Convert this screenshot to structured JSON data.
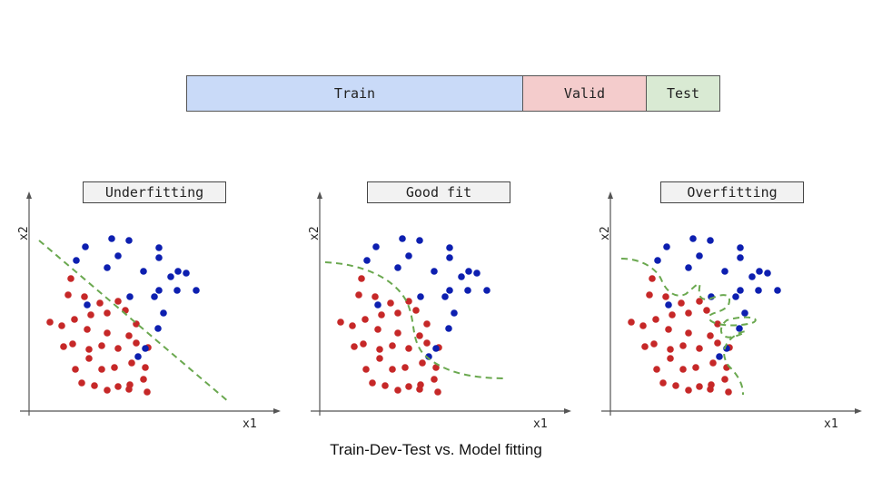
{
  "split_bar": {
    "segments": [
      {
        "label": "Train",
        "color": "#c9daf8"
      },
      {
        "label": "Valid",
        "color": "#f4cccc"
      },
      {
        "label": "Test",
        "color": "#d9ead3"
      }
    ]
  },
  "panels": [
    {
      "title": "Underfitting",
      "x_label": "x1",
      "y_label": "x2"
    },
    {
      "title": "Good fit",
      "x_label": "x1",
      "y_label": "x2"
    },
    {
      "title": "Overfitting",
      "x_label": "x1",
      "y_label": "x2"
    }
  ],
  "colors": {
    "class_a": "#c62828",
    "class_b": "#0d1fb0",
    "boundary": "#6aa84f",
    "axis": "#555555"
  },
  "caption": "Train-Dev-Test vs. Model fitting"
}
